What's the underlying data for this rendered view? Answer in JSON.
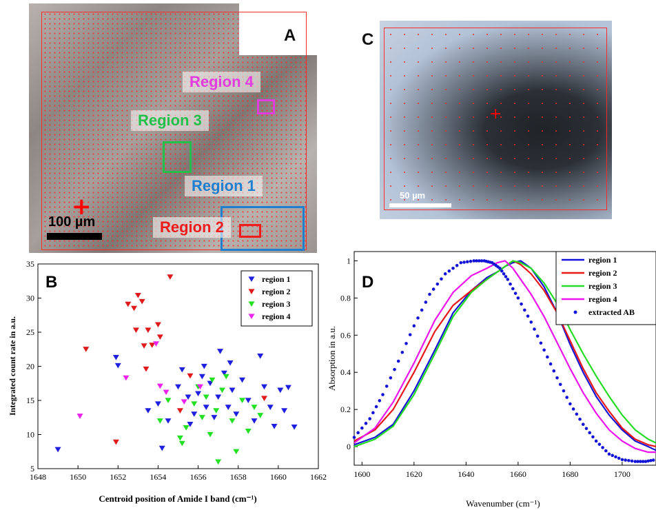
{
  "panels": {
    "a": {
      "letter": "A",
      "scale_label": "100 µm",
      "regions": [
        {
          "label": "Region 4",
          "color": "#e23be0"
        },
        {
          "label": "Region 3",
          "color": "#22c04a"
        },
        {
          "label": "Region 1",
          "color": "#1e7fd0"
        },
        {
          "label": "Region 2",
          "color": "#ee1c1c"
        }
      ]
    },
    "c": {
      "letter": "C",
      "scale_label": "50 µm"
    },
    "b": {
      "letter": "B"
    },
    "d": {
      "letter": "D"
    }
  },
  "chart_data": [
    {
      "panel": "B",
      "type": "scatter",
      "xlabel": "Centroid position of Amide I band (cm⁻¹)",
      "ylabel": "Integrated count rate in a.u.",
      "xlim": [
        1648,
        1662
      ],
      "ylim": [
        5,
        35
      ],
      "xticks": [
        1648,
        1650,
        1652,
        1654,
        1656,
        1658,
        1660,
        1662
      ],
      "yticks": [
        5,
        10,
        15,
        20,
        25,
        30,
        35
      ],
      "legend_position": "top-right",
      "marker": "down-triangle",
      "series": [
        {
          "name": "region 1",
          "color": "#1f1fe0",
          "points": [
            [
              1649,
              7.8
            ],
            [
              1651.9,
              21.3
            ],
            [
              1652,
              20.1
            ],
            [
              1654.2,
              8
            ],
            [
              1653.5,
              13.5
            ],
            [
              1654,
              14.5
            ],
            [
              1654.5,
              12
            ],
            [
              1655,
              17
            ],
            [
              1655.2,
              19.5
            ],
            [
              1655.5,
              15.5
            ],
            [
              1655.8,
              13
            ],
            [
              1656,
              16
            ],
            [
              1656.2,
              18.5
            ],
            [
              1656.4,
              14
            ],
            [
              1656.6,
              17.5
            ],
            [
              1656.8,
              12.5
            ],
            [
              1657,
              15.5
            ],
            [
              1657.1,
              22.2
            ],
            [
              1657.3,
              19
            ],
            [
              1657.5,
              14
            ],
            [
              1657.7,
              16.5
            ],
            [
              1657.9,
              13
            ],
            [
              1658.2,
              18
            ],
            [
              1658.5,
              15
            ],
            [
              1658.8,
              12
            ],
            [
              1659.1,
              21.5
            ],
            [
              1659.3,
              17
            ],
            [
              1659.6,
              14
            ],
            [
              1659.8,
              11.2
            ],
            [
              1660.1,
              16.5
            ],
            [
              1660.3,
              13.5
            ],
            [
              1660.5,
              16.9
            ],
            [
              1660.8,
              11.1
            ],
            [
              1656.3,
              20
            ],
            [
              1655.6,
              11.5
            ],
            [
              1657.6,
              20.5
            ]
          ]
        },
        {
          "name": "region 2",
          "color": "#e01a1a",
          "points": [
            [
              1650.4,
              22.5
            ],
            [
              1651.9,
              8.9
            ],
            [
              1652.5,
              29.1
            ],
            [
              1652.8,
              28.5
            ],
            [
              1652.9,
              25.3
            ],
            [
              1653,
              30.4
            ],
            [
              1653.2,
              29.5
            ],
            [
              1653.5,
              25.3
            ],
            [
              1653.3,
              23
            ],
            [
              1653.7,
              23.1
            ],
            [
              1653.4,
              19.6
            ],
            [
              1654,
              26.1
            ],
            [
              1654.1,
              24.3
            ],
            [
              1654.6,
              33.1
            ],
            [
              1655.1,
              13.5
            ],
            [
              1655.6,
              18.6
            ],
            [
              1659.3,
              15.3
            ]
          ]
        },
        {
          "name": "region 3",
          "color": "#22e022",
          "points": [
            [
              1654.1,
              12
            ],
            [
              1654.5,
              15
            ],
            [
              1655.1,
              9.5
            ],
            [
              1655.4,
              11
            ],
            [
              1655.8,
              14.5
            ],
            [
              1656,
              17
            ],
            [
              1656.2,
              12.5
            ],
            [
              1656.4,
              15.5
            ],
            [
              1656.6,
              10
            ],
            [
              1656.9,
              13.5
            ],
            [
              1657,
              6
            ],
            [
              1657.2,
              16.5
            ],
            [
              1657.4,
              18.5
            ],
            [
              1657.7,
              12
            ],
            [
              1657.9,
              7.5
            ],
            [
              1658.2,
              15
            ],
            [
              1658.5,
              10.5
            ],
            [
              1658.8,
              14
            ],
            [
              1659.1,
              12.8
            ],
            [
              1655.2,
              8.7
            ],
            [
              1656.7,
              18
            ]
          ]
        },
        {
          "name": "region 4",
          "color": "#ee22ee",
          "points": [
            [
              1650.1,
              12.7
            ],
            [
              1652.4,
              18.3
            ],
            [
              1653.9,
              23.3
            ],
            [
              1654.1,
              17.1
            ],
            [
              1654.4,
              16.2
            ],
            [
              1655.3,
              14.8
            ],
            [
              1656.1,
              17
            ]
          ]
        }
      ]
    },
    {
      "panel": "D",
      "type": "line",
      "xlabel": "Wavenumber (cm⁻¹)",
      "ylabel": "Absorption in a.u.",
      "xlim": [
        1597,
        1713
      ],
      "ylim": [
        -0.1,
        1.05
      ],
      "xticks": [
        1600,
        1620,
        1640,
        1660,
        1680,
        1700
      ],
      "yticks": [
        0,
        0.2,
        0.4,
        0.6,
        0.8,
        1
      ],
      "legend_position": "top-right",
      "series": [
        {
          "name": "region 1",
          "color": "#1414d8",
          "style": "solid",
          "x": [
            1597,
            1605,
            1612,
            1620,
            1628,
            1635,
            1642,
            1648,
            1652,
            1655,
            1658,
            1661,
            1665,
            1670,
            1675,
            1680,
            1685,
            1690,
            1695,
            1700,
            1705,
            1710,
            1713
          ],
          "y": [
            0.01,
            0.05,
            0.12,
            0.3,
            0.52,
            0.72,
            0.84,
            0.91,
            0.94,
            0.97,
            0.99,
            1.0,
            0.96,
            0.86,
            0.72,
            0.55,
            0.4,
            0.27,
            0.17,
            0.09,
            0.03,
            0.0,
            -0.02
          ]
        },
        {
          "name": "region 2",
          "color": "#e81818",
          "style": "solid",
          "x": [
            1597,
            1605,
            1612,
            1620,
            1628,
            1635,
            1642,
            1648,
            1652,
            1655,
            1658,
            1661,
            1665,
            1670,
            1675,
            1680,
            1685,
            1690,
            1695,
            1700,
            1705,
            1710,
            1713
          ],
          "y": [
            0.03,
            0.09,
            0.2,
            0.4,
            0.62,
            0.76,
            0.84,
            0.9,
            0.94,
            0.97,
            1.0,
            0.98,
            0.93,
            0.84,
            0.72,
            0.57,
            0.42,
            0.29,
            0.19,
            0.1,
            0.04,
            0.01,
            0.0
          ]
        },
        {
          "name": "region 3",
          "color": "#22dd22",
          "style": "solid",
          "x": [
            1597,
            1605,
            1612,
            1620,
            1628,
            1635,
            1642,
            1648,
            1652,
            1655,
            1658,
            1661,
            1665,
            1670,
            1675,
            1680,
            1685,
            1690,
            1695,
            1700,
            1705,
            1710,
            1713
          ],
          "y": [
            0.0,
            0.04,
            0.11,
            0.28,
            0.5,
            0.7,
            0.83,
            0.9,
            0.94,
            0.97,
            1.0,
            0.99,
            0.96,
            0.88,
            0.77,
            0.63,
            0.5,
            0.38,
            0.27,
            0.17,
            0.09,
            0.04,
            0.02
          ]
        },
        {
          "name": "region 4",
          "color": "#ee11ee",
          "style": "solid",
          "x": [
            1597,
            1605,
            1612,
            1620,
            1628,
            1635,
            1642,
            1648,
            1652,
            1655,
            1658,
            1661,
            1665,
            1670,
            1675,
            1680,
            1685,
            1690,
            1695,
            1700,
            1705,
            1710,
            1713
          ],
          "y": [
            0.02,
            0.1,
            0.24,
            0.45,
            0.68,
            0.83,
            0.92,
            0.96,
            0.99,
            1.0,
            0.96,
            0.9,
            0.82,
            0.7,
            0.56,
            0.42,
            0.29,
            0.18,
            0.09,
            0.03,
            -0.01,
            -0.03,
            -0.03
          ]
        },
        {
          "name": "extracted AB",
          "color": "#1414d8",
          "style": "dotted",
          "x": [
            1597,
            1603,
            1608,
            1614,
            1620,
            1626,
            1632,
            1638,
            1643,
            1647,
            1650,
            1653,
            1656,
            1660,
            1665,
            1670,
            1675,
            1680,
            1685,
            1690,
            1695,
            1700,
            1705,
            1709,
            1713
          ],
          "y": [
            0.05,
            0.15,
            0.28,
            0.46,
            0.65,
            0.82,
            0.93,
            0.99,
            1.0,
            1.0,
            0.99,
            0.96,
            0.9,
            0.8,
            0.67,
            0.52,
            0.37,
            0.23,
            0.12,
            0.03,
            -0.04,
            -0.07,
            -0.08,
            -0.08,
            -0.07
          ]
        }
      ]
    }
  ]
}
